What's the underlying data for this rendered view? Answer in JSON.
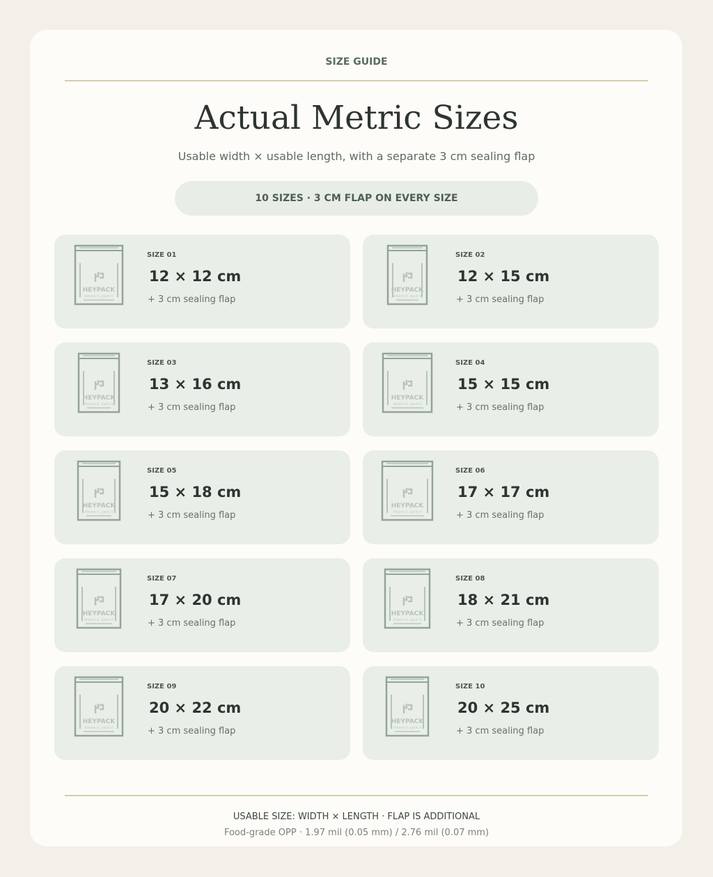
{
  "header": {
    "eyebrow": "SIZE GUIDE",
    "title": "Actual Metric Sizes",
    "subtitle": "Usable width × usable length, with a separate 3 cm sealing flap",
    "badge": "10 SIZES · 3 CM FLAP ON EVERY SIZE"
  },
  "bag_logo": {
    "brand": "HEYPACK",
    "tagline": "dream it. pack it"
  },
  "cards": [
    {
      "label": "SIZE 01",
      "size": "12 × 12 cm",
      "note": "+ 3 cm sealing flap"
    },
    {
      "label": "SIZE 02",
      "size": "12 × 15 cm",
      "note": "+ 3 cm sealing flap"
    },
    {
      "label": "SIZE 03",
      "size": "13 × 16 cm",
      "note": "+ 3 cm sealing flap"
    },
    {
      "label": "SIZE 04",
      "size": "15 × 15 cm",
      "note": "+ 3 cm sealing flap"
    },
    {
      "label": "SIZE 05",
      "size": "15 × 18 cm",
      "note": "+ 3 cm sealing flap"
    },
    {
      "label": "SIZE 06",
      "size": "17 × 17 cm",
      "note": "+ 3 cm sealing flap"
    },
    {
      "label": "SIZE 07",
      "size": "17 × 20 cm",
      "note": "+ 3 cm sealing flap"
    },
    {
      "label": "SIZE 08",
      "size": "18 × 21 cm",
      "note": "+ 3 cm sealing flap"
    },
    {
      "label": "SIZE 09",
      "size": "20 × 22 cm",
      "note": "+ 3 cm sealing flap"
    },
    {
      "label": "SIZE 10",
      "size": "20 × 25 cm",
      "note": "+ 3 cm sealing flap"
    }
  ],
  "footer": {
    "line1": "USABLE SIZE: WIDTH × LENGTH · FLAP IS ADDITIONAL",
    "line2": "Food-grade OPP · 1.97 mil (0.05 mm) / 2.76 mil (0.07 mm)"
  }
}
